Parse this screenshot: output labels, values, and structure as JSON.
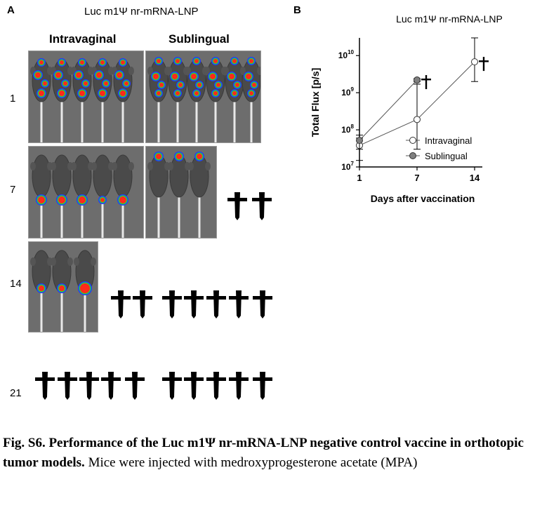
{
  "panel_a": {
    "letter": "A",
    "title": "Luc m1Ψ nr-mRNA-LNP",
    "col_intravaginal": "Intravaginal",
    "col_sublingual": "Sublingual",
    "day_labels": [
      "1",
      "7",
      "14",
      "21"
    ]
  },
  "panel_b": {
    "letter": "B"
  },
  "chart_data": {
    "type": "line",
    "title": "Luc m1Ψ nr-mRNA-LNP",
    "xlabel": "Days after vaccination",
    "ylabel": "Total Flux [p/s]",
    "y_scale": "log",
    "ylim": [
      10000000,
      30000000000
    ],
    "x_ticks": [
      "1",
      "7",
      "14"
    ],
    "y_ticks": [
      "10^7",
      "10^8",
      "10^9",
      "10^10"
    ],
    "legend_position": "lower-right",
    "series": [
      {
        "name": "Intravaginal",
        "marker": "open-circle",
        "color": "#ffffff",
        "x": [
          1,
          7,
          14
        ],
        "y": [
          38000000,
          190000000,
          6800000000
        ],
        "err_low": [
          15000000,
          30000000,
          2000000000
        ],
        "err_high": [
          60000000,
          1700000000,
          30000000000
        ]
      },
      {
        "name": "Sublingual",
        "marker": "filled-circle",
        "color": "#808080",
        "x": [
          1,
          7
        ],
        "y": [
          52000000,
          2200000000
        ],
        "err_low": [
          30000000,
          2000000000
        ],
        "err_high": [
          72000000,
          2400000000
        ]
      }
    ],
    "death_markers": [
      "7",
      "14"
    ]
  },
  "caption": {
    "bold": "Fig. S6. Performance of the Luc m1Ψ nr-mRNA-LNP negative control vaccine in orthotopic tumor models.",
    "text": " Mice were injected with medroxyprogesterone acetate (MPA)"
  }
}
